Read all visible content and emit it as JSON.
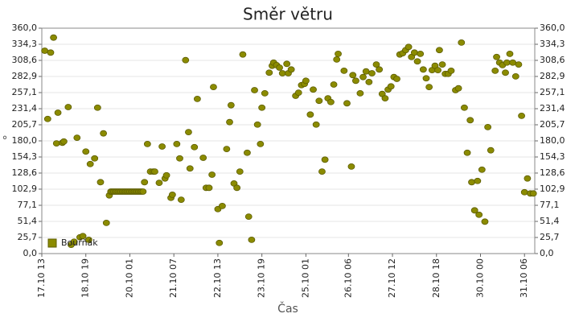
{
  "chart_data": {
    "type": "scatter",
    "title": "Směr větru",
    "x_label": "Čas",
    "y_label": "°",
    "xlim": [
      "17.10 13",
      "31.10 13"
    ],
    "xticks": [
      "17.10 13",
      "18.10 19",
      "20.10 01",
      "21.10 07",
      "22.10 13",
      "23.10 19",
      "25.10 01",
      "26.10 06",
      "27.10 12",
      "28.10 18",
      "30.10 00",
      "31.10 06"
    ],
    "ylim": [
      0,
      360
    ],
    "yticks": [
      {
        "value": 0,
        "label": "0,0"
      },
      {
        "value": 25.7,
        "label": "25,7"
      },
      {
        "value": 51.4,
        "label": "51,4"
      },
      {
        "value": 77.1,
        "label": "77,1"
      },
      {
        "value": 102.9,
        "label": "102,9"
      },
      {
        "value": 128.6,
        "label": "128,6"
      },
      {
        "value": 154.3,
        "label": "154,3"
      },
      {
        "value": 180,
        "label": "180,0"
      },
      {
        "value": 205.7,
        "label": "205,7"
      },
      {
        "value": 231.4,
        "label": "231,4"
      },
      {
        "value": 257.1,
        "label": "257,1"
      },
      {
        "value": 282.9,
        "label": "282,9"
      },
      {
        "value": 308.6,
        "label": "308,6"
      },
      {
        "value": 334.3,
        "label": "334,3"
      },
      {
        "value": 360,
        "label": "360,0"
      }
    ],
    "grid": true,
    "legend": "lower left",
    "x": [
      "17.10 15",
      "17.10 17",
      "17.10 19",
      "17.10 21",
      "17.10 23",
      "18.10 00",
      "18.10 03",
      "18.10 04",
      "18.10 07",
      "18.10 09",
      "18.10 11",
      "18.10 13",
      "18.10 15",
      "18.10 17",
      "18.10 19",
      "18.10 21",
      "18.10 22",
      "19.10 01",
      "19.10 03",
      "19.10 05",
      "19.10 07",
      "19.10 09",
      "19.10 11",
      "19.10 12",
      "19.10 13",
      "19.10 14",
      "19.10 15",
      "19.10 16",
      "19.10 17",
      "19.10 18",
      "19.10 19",
      "19.10 20",
      "19.10 21",
      "19.10 22",
      "19.10 23",
      "20.10 00",
      "20.10 01",
      "20.10 02",
      "20.10 03",
      "20.10 04",
      "20.10 05",
      "20.10 06",
      "20.10 07",
      "20.10 08",
      "20.10 09",
      "20.10 10",
      "20.10 11",
      "20.10 13",
      "20.10 15",
      "20.10 17",
      "20.10 18",
      "20.10 21",
      "20.10 23",
      "21.10 01",
      "21.10 02",
      "21.10 05",
      "21.10 06",
      "21.10 09",
      "21.10 11",
      "21.10 12",
      "21.10 15",
      "21.10 17",
      "21.10 18",
      "21.10 21",
      "21.10 23",
      "22.10 03",
      "22.10 05",
      "22.10 07",
      "22.10 09",
      "22.10 10",
      "22.10 13",
      "22.10 14",
      "22.10 16",
      "22.10 19",
      "22.10 21",
      "22.10 22",
      "23.10 00",
      "23.10 02",
      "23.10 04",
      "23.10 06",
      "23.10 09",
      "23.10 10",
      "23.10 12",
      "23.10 14",
      "23.10 16",
      "23.10 18",
      "23.10 19",
      "23.10 21",
      "24.10 00",
      "24.10 02",
      "24.10 03",
      "24.10 05",
      "24.10 07",
      "24.10 09",
      "24.10 12",
      "24.10 13",
      "24.10 15",
      "24.10 18",
      "24.10 20",
      "24.10 22",
      "25.10 00",
      "25.10 01",
      "25.10 04",
      "25.10 06",
      "25.10 08",
      "25.10 10",
      "25.10 12",
      "25.10 14",
      "25.10 16",
      "25.10 18",
      "25.10 20",
      "25.10 22",
      "25.10 23",
      "26.10 03",
      "26.10 05",
      "26.10 08",
      "26.10 09",
      "26.10 11",
      "26.10 14",
      "26.10 16",
      "26.10 18",
      "26.10 20",
      "26.10 22",
      "27.10 01",
      "27.10 03",
      "27.10 05",
      "27.10 07",
      "27.10 09",
      "27.10 11",
      "27.10 13",
      "27.10 15",
      "27.10 17",
      "27.10 19",
      "27.10 21",
      "27.10 23",
      "28.10 01",
      "28.10 03",
      "28.10 05",
      "28.10 07",
      "28.10 09",
      "28.10 11",
      "28.10 13",
      "28.10 15",
      "28.10 17",
      "28.10 19",
      "28.10 20",
      "28.10 22",
      "29.10 00",
      "29.10 02",
      "29.10 04",
      "29.10 07",
      "29.10 09",
      "29.10 11",
      "29.10 13",
      "29.10 15",
      "29.10 17",
      "29.10 18",
      "29.10 20",
      "29.10 22",
      "29.10 23",
      "30.10 01",
      "30.10 03",
      "30.10 05",
      "30.10 07",
      "30.10 10",
      "30.10 11",
      "30.10 13",
      "30.10 15",
      "30.10 17",
      "30.10 18",
      "30.10 20",
      "30.10 22",
      "31.10 00",
      "31.10 02",
      "31.10 04",
      "31.10 06",
      "31.10 08",
      "31.10 10",
      "31.10 12"
    ],
    "series": [
      {
        "name": "Bouřňák",
        "color": "#8b8b00",
        "values": [
          324,
          215,
          321,
          345,
          176,
          225,
          177,
          179,
          234,
          14,
          19,
          185,
          26,
          28,
          163,
          22,
          143,
          152,
          233,
          114,
          192,
          49,
          93,
          99,
          99,
          99,
          99,
          99,
          99,
          99,
          99,
          99,
          99,
          99,
          99,
          99,
          99,
          99,
          99,
          99,
          99,
          99,
          99,
          99,
          99,
          99,
          114,
          175,
          131,
          131,
          131,
          113,
          171,
          120,
          125,
          89,
          94,
          175,
          152,
          86,
          309,
          194,
          136,
          170,
          247,
          153,
          105,
          105,
          126,
          266,
          71,
          17,
          76,
          167,
          210,
          237,
          112,
          105,
          131,
          318,
          161,
          59,
          22,
          261,
          206,
          175,
          233,
          256,
          289,
          300,
          305,
          301,
          297,
          288,
          303,
          288,
          294,
          252,
          257,
          269,
          271,
          276,
          222,
          262,
          206,
          244,
          131,
          150,
          248,
          242,
          270,
          310,
          319,
          292,
          240,
          139,
          285,
          276,
          256,
          282,
          291,
          274,
          288,
          302,
          294,
          255,
          248,
          262,
          267,
          282,
          279,
          318,
          320,
          325,
          330,
          314,
          321,
          307,
          319,
          294,
          280,
          266,
          293,
          300,
          293,
          325,
          302,
          287,
          287,
          292,
          261,
          264,
          337,
          233,
          161,
          213,
          114,
          69,
          116,
          62,
          134,
          51,
          202,
          165,
          292,
          314,
          305,
          301,
          289,
          305,
          319,
          305,
          283,
          302,
          220,
          98,
          120,
          96,
          96
        ]
      }
    ]
  }
}
